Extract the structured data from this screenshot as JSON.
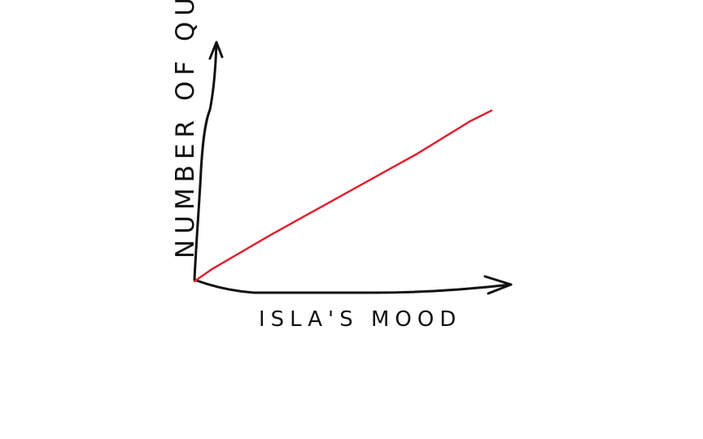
{
  "chart_data": {
    "type": "line",
    "title": "",
    "xlabel": "ISLA'S MOOD",
    "ylabel": "NUMBER OF QUESTIONS",
    "grid": false,
    "legend": "none",
    "ticks": "none",
    "series": [
      {
        "color": "#e02030",
        "x": [
          0,
          0.06,
          0.25,
          0.5,
          0.75,
          0.93,
          1.0
        ],
        "y": [
          0,
          0.06,
          0.22,
          0.42,
          0.62,
          0.78,
          0.83
        ]
      }
    ],
    "xlim": [
      0,
      1
    ],
    "ylim": [
      0,
      1
    ]
  },
  "colors": {
    "axis": "#111111",
    "line": "#e02030",
    "background": "#ffffff"
  }
}
